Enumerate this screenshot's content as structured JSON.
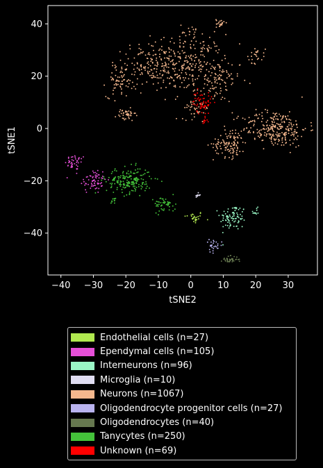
{
  "chart_data": {
    "type": "scatter",
    "xlabel": "tSNE2",
    "ylabel": "tSNE1",
    "xlim": [
      -44,
      39
    ],
    "ylim": [
      -56,
      47
    ],
    "xticks": [
      -40,
      -30,
      -20,
      -10,
      0,
      10,
      20,
      30
    ],
    "yticks": [
      -40,
      -20,
      0,
      20,
      40
    ],
    "grid": false,
    "legend_placement": "below",
    "series": [
      {
        "name": "Endothelial cells (n=27)",
        "color": "#b0e84f",
        "clusters": [
          {
            "cx": 1,
            "cy": -34,
            "sx": 1.5,
            "sy": 1.2,
            "n": 27
          }
        ]
      },
      {
        "name": "Ependymal cells (n=105)",
        "color": "#e64fd8",
        "clusters": [
          {
            "cx": -35.5,
            "cy": -13,
            "sx": 1.6,
            "sy": 1.5,
            "n": 40
          },
          {
            "cx": -30,
            "cy": -20,
            "sx": 2.0,
            "sy": 2.5,
            "n": 65
          }
        ]
      },
      {
        "name": "Interneurons (n=96)",
        "color": "#9af7c6",
        "clusters": [
          {
            "cx": 13,
            "cy": -34,
            "sx": 2.0,
            "sy": 2.5,
            "n": 86
          },
          {
            "cx": 20,
            "cy": -32,
            "sx": 0.7,
            "sy": 0.8,
            "n": 10
          }
        ]
      },
      {
        "name": "Microglia (n=10)",
        "color": "#e0ddf2",
        "clusters": [
          {
            "cx": 2,
            "cy": -25.5,
            "sx": 0.5,
            "sy": 0.4,
            "n": 10
          }
        ]
      },
      {
        "name": "Neurons (n=1067)",
        "color": "#f5b88e",
        "clusters": [
          {
            "cx": -12,
            "cy": 24,
            "sx": 4.5,
            "sy": 4.5,
            "n": 170
          },
          {
            "cx": 0,
            "cy": 25,
            "sx": 5.0,
            "sy": 5.5,
            "n": 230
          },
          {
            "cx": 8,
            "cy": 18,
            "sx": 3.5,
            "sy": 4.0,
            "n": 90
          },
          {
            "cx": -22,
            "cy": 18,
            "sx": 2.0,
            "sy": 3.0,
            "n": 60
          },
          {
            "cx": -20,
            "cy": 5,
            "sx": 1.5,
            "sy": 1.2,
            "n": 40
          },
          {
            "cx": 26,
            "cy": 0,
            "sx": 5.0,
            "sy": 3.5,
            "n": 270
          },
          {
            "cx": 12,
            "cy": -6,
            "sx": 2.5,
            "sy": 2.5,
            "n": 110
          },
          {
            "cx": 20,
            "cy": 28,
            "sx": 1.5,
            "sy": 1.5,
            "n": 25
          },
          {
            "cx": 9,
            "cy": 40,
            "sx": 0.6,
            "sy": 1.0,
            "n": 20
          },
          {
            "cx": 0,
            "cy": 38,
            "sx": 1.3,
            "sy": 1.5,
            "n": 12
          },
          {
            "cx": 2,
            "cy": 8,
            "sx": 2.0,
            "sy": 2.0,
            "n": 40
          }
        ]
      },
      {
        "name": "Oligodendrocyte progenitor cells (n=27)",
        "color": "#b9b3ef",
        "clusters": [
          {
            "cx": 7,
            "cy": -45,
            "sx": 1.3,
            "sy": 1.2,
            "n": 27
          }
        ]
      },
      {
        "name": "Oligodendrocytes (n=40)",
        "color": "#66784f",
        "clusters": [
          {
            "cx": 12,
            "cy": -50,
            "sx": 1.3,
            "sy": 0.6,
            "n": 40
          }
        ]
      },
      {
        "name": "Tanycytes (n=250)",
        "color": "#44c23a",
        "clusters": [
          {
            "cx": -19,
            "cy": -20,
            "sx": 3.5,
            "sy": 2.5,
            "n": 190
          },
          {
            "cx": -8,
            "cy": -29,
            "sx": 1.7,
            "sy": 1.5,
            "n": 50
          },
          {
            "cx": -24,
            "cy": -28,
            "sx": 0.5,
            "sy": 0.7,
            "n": 10
          }
        ]
      },
      {
        "name": "Unknown (n=69)",
        "color": "#ff0000",
        "clusters": [
          {
            "cx": 3.5,
            "cy": 10,
            "sx": 1.5,
            "sy": 2.2,
            "n": 60
          },
          {
            "cx": 4.5,
            "cy": 3,
            "sx": 0.4,
            "sy": 0.6,
            "n": 9
          }
        ]
      }
    ]
  }
}
